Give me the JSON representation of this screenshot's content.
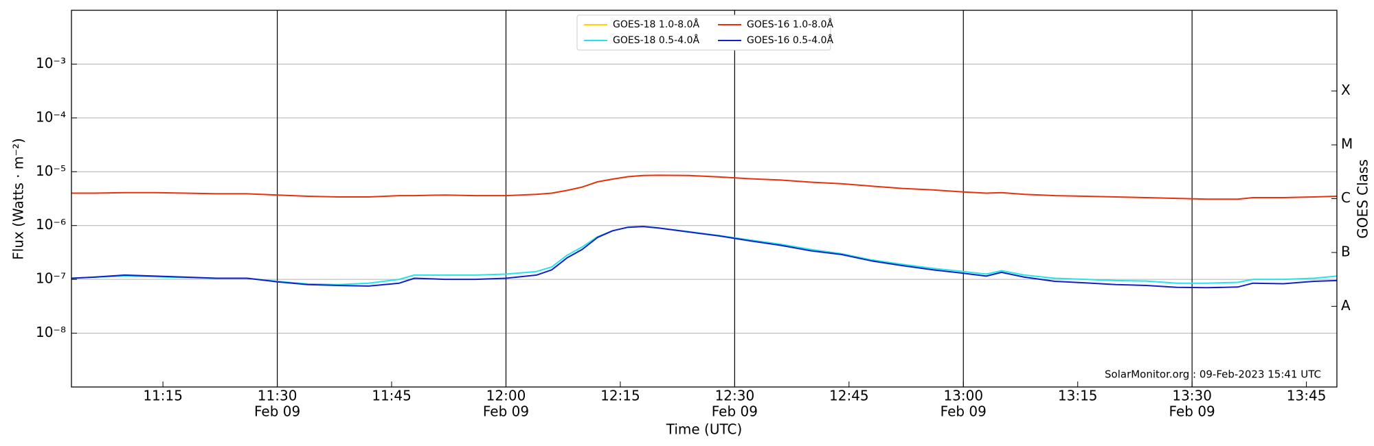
{
  "chart_data": {
    "type": "line",
    "xlabel": "Time (UTC)",
    "ylabel": "Flux (Watts · m⁻²)",
    "y2label": "GOES Class",
    "annotation": "SolarMonitor.org : 09-Feb-2023 15:41 UTC",
    "log_y": true,
    "grid": true,
    "legend": "top",
    "x": [
      "11:03",
      "11:06",
      "11:10",
      "11:14",
      "11:18",
      "11:22",
      "11:26",
      "11:30",
      "11:34",
      "11:38",
      "11:42",
      "11:46",
      "11:48",
      "11:52",
      "11:56",
      "12:00",
      "12:04",
      "12:06",
      "12:08",
      "12:10",
      "12:12",
      "12:14",
      "12:16",
      "12:18",
      "12:20",
      "12:24",
      "12:28",
      "12:32",
      "12:36",
      "12:40",
      "12:44",
      "12:48",
      "12:52",
      "12:56",
      "13:00",
      "13:03",
      "13:05",
      "13:08",
      "13:12",
      "13:16",
      "13:20",
      "13:24",
      "13:28",
      "13:32",
      "13:36",
      "13:38",
      "13:42",
      "13:46",
      "13:49"
    ],
    "xlim": [
      "11:03",
      "13:49"
    ],
    "xticks": [
      {
        "value": "11:15",
        "label": "11:15"
      },
      {
        "value": "11:30",
        "label": "11:30",
        "date": "Feb 09"
      },
      {
        "value": "11:45",
        "label": "11:45"
      },
      {
        "value": "12:00",
        "label": "12:00",
        "date": "Feb 09"
      },
      {
        "value": "12:15",
        "label": "12:15"
      },
      {
        "value": "12:30",
        "label": "12:30",
        "date": "Feb 09"
      },
      {
        "value": "12:45",
        "label": "12:45"
      },
      {
        "value": "13:00",
        "label": "13:00",
        "date": "Feb 09"
      },
      {
        "value": "13:15",
        "label": "13:15"
      },
      {
        "value": "13:30",
        "label": "13:30",
        "date": "Feb 09"
      },
      {
        "value": "13:45",
        "label": "13:45"
      }
    ],
    "ylim": [
      1e-09,
      0.01
    ],
    "yticks": [
      {
        "value": 1e-08,
        "label": "10⁻⁸"
      },
      {
        "value": 1e-07,
        "label": "10⁻⁷"
      },
      {
        "value": 1e-06,
        "label": "10⁻⁶"
      },
      {
        "value": 1e-05,
        "label": "10⁻⁵"
      },
      {
        "value": 0.0001,
        "label": "10⁻⁴"
      },
      {
        "value": 0.001,
        "label": "10⁻³"
      }
    ],
    "y2lim": [
      1e-09,
      0.01
    ],
    "y2ticks": [
      {
        "value": 3.16e-08,
        "label": "A"
      },
      {
        "value": 3.16e-07,
        "label": "B"
      },
      {
        "value": 3.16e-06,
        "label": "C"
      },
      {
        "value": 3.16e-05,
        "label": "M"
      },
      {
        "value": 0.000316,
        "label": "X"
      }
    ],
    "series": [
      {
        "name": "GOES-18 1.0-8.0Å",
        "color": "#ffd700",
        "values": [
          null,
          null,
          null,
          null,
          null,
          null,
          null,
          null,
          null,
          null,
          null,
          null,
          null,
          null,
          null,
          null,
          null,
          null,
          null,
          null,
          null,
          null,
          null,
          null,
          null,
          null,
          null,
          null,
          null,
          null,
          null,
          null,
          null,
          null,
          null,
          null,
          null,
          null,
          null,
          null,
          null,
          null,
          null,
          null,
          null,
          null,
          null,
          null,
          null
        ]
      },
      {
        "name": "GOES-18 0.5-4.0Å",
        "color": "#22e6e6",
        "values": [
          1.05e-07,
          1.1e-07,
          1.15e-07,
          1.12e-07,
          1.08e-07,
          1.05e-07,
          1.05e-07,
          9.2e-08,
          8.2e-08,
          8e-08,
          8.5e-08,
          1e-07,
          1.2e-07,
          1.2e-07,
          1.2e-07,
          1.25e-07,
          1.4e-07,
          1.7e-07,
          2.8e-07,
          4e-07,
          6.2e-07,
          8e-07,
          9.3e-07,
          9.6e-07,
          9e-07,
          7.7e-07,
          6.5e-07,
          5.4e-07,
          4.5e-07,
          3.6e-07,
          3e-07,
          2.3e-07,
          1.9e-07,
          1.6e-07,
          1.4e-07,
          1.25e-07,
          1.45e-07,
          1.2e-07,
          1.05e-07,
          1e-07,
          9.5e-08,
          9.3e-08,
          8.5e-08,
          8.5e-08,
          8.8e-08,
          1e-07,
          1e-07,
          1.05e-07,
          1.15e-07
        ]
      },
      {
        "name": "GOES-16 1.0-8.0Å",
        "color": "#e8300a",
        "values": [
          4e-06,
          4e-06,
          4.1e-06,
          4.1e-06,
          4e-06,
          3.9e-06,
          3.9e-06,
          3.7e-06,
          3.5e-06,
          3.4e-06,
          3.4e-06,
          3.6e-06,
          3.6e-06,
          3.7e-06,
          3.6e-06,
          3.6e-06,
          3.8e-06,
          4e-06,
          4.5e-06,
          5.2e-06,
          6.5e-06,
          7.3e-06,
          8.1e-06,
          8.5e-06,
          8.6e-06,
          8.5e-06,
          8e-06,
          7.4e-06,
          7e-06,
          6.4e-06,
          6e-06,
          5.4e-06,
          4.9e-06,
          4.6e-06,
          4.2e-06,
          4e-06,
          4.1e-06,
          3.8e-06,
          3.6e-06,
          3.5e-06,
          3.4e-06,
          3.3e-06,
          3.2e-06,
          3.1e-06,
          3.1e-06,
          3.3e-06,
          3.3e-06,
          3.4e-06,
          3.5e-06
        ]
      },
      {
        "name": "GOES-16 0.5-4.0Å",
        "color": "#1020c8",
        "values": [
          1.05e-07,
          1.1e-07,
          1.2e-07,
          1.15e-07,
          1.1e-07,
          1.05e-07,
          1.05e-07,
          9e-08,
          8e-08,
          7.7e-08,
          7.5e-08,
          8.5e-08,
          1.05e-07,
          1e-07,
          1e-07,
          1.05e-07,
          1.2e-07,
          1.5e-07,
          2.5e-07,
          3.6e-07,
          6e-07,
          8e-07,
          9.3e-07,
          9.6e-07,
          9e-07,
          7.6e-07,
          6.4e-07,
          5.2e-07,
          4.3e-07,
          3.4e-07,
          2.9e-07,
          2.2e-07,
          1.8e-07,
          1.5e-07,
          1.3e-07,
          1.15e-07,
          1.35e-07,
          1.1e-07,
          9.2e-08,
          8.6e-08,
          8e-08,
          7.7e-08,
          7.1e-08,
          7e-08,
          7.2e-08,
          8.5e-08,
          8.3e-08,
          9.2e-08,
          9.5e-08
        ]
      }
    ]
  }
}
